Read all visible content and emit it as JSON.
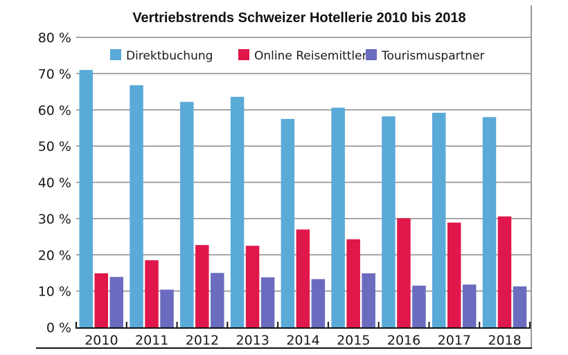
{
  "chart_data": {
    "type": "bar",
    "title": "Vertriebstrends Schweizer Hotellerie 2010 bis 2018",
    "xlabel": "",
    "ylabel": "",
    "categories": [
      "2010",
      "2011",
      "2012",
      "2013",
      "2014",
      "2015",
      "2016",
      "2017",
      "2018"
    ],
    "series": [
      {
        "name": "Direktbuchung",
        "color": "#5aaad8",
        "values": [
          71.0,
          66.8,
          62.2,
          63.6,
          57.5,
          60.6,
          58.2,
          59.2,
          58.0
        ]
      },
      {
        "name": "Online Reisemittler",
        "color": "#e0174a",
        "values": [
          14.9,
          18.5,
          22.7,
          22.5,
          27.0,
          24.3,
          30.1,
          28.9,
          30.6
        ]
      },
      {
        "name": "Tourismuspartner",
        "color": "#6b6bbf",
        "values": [
          13.9,
          10.4,
          15.0,
          13.8,
          13.3,
          14.9,
          11.5,
          11.8,
          11.3
        ]
      }
    ],
    "ylim": [
      0,
      80
    ],
    "yticks": [
      0,
      10,
      20,
      30,
      40,
      50,
      60,
      70,
      80
    ],
    "ytick_labels": [
      "0 %",
      "10 %",
      "20 %",
      "30 %",
      "40 %",
      "50 %",
      "60 %",
      "70 %",
      "80 %"
    ],
    "grid": true,
    "legend_position": "top"
  }
}
